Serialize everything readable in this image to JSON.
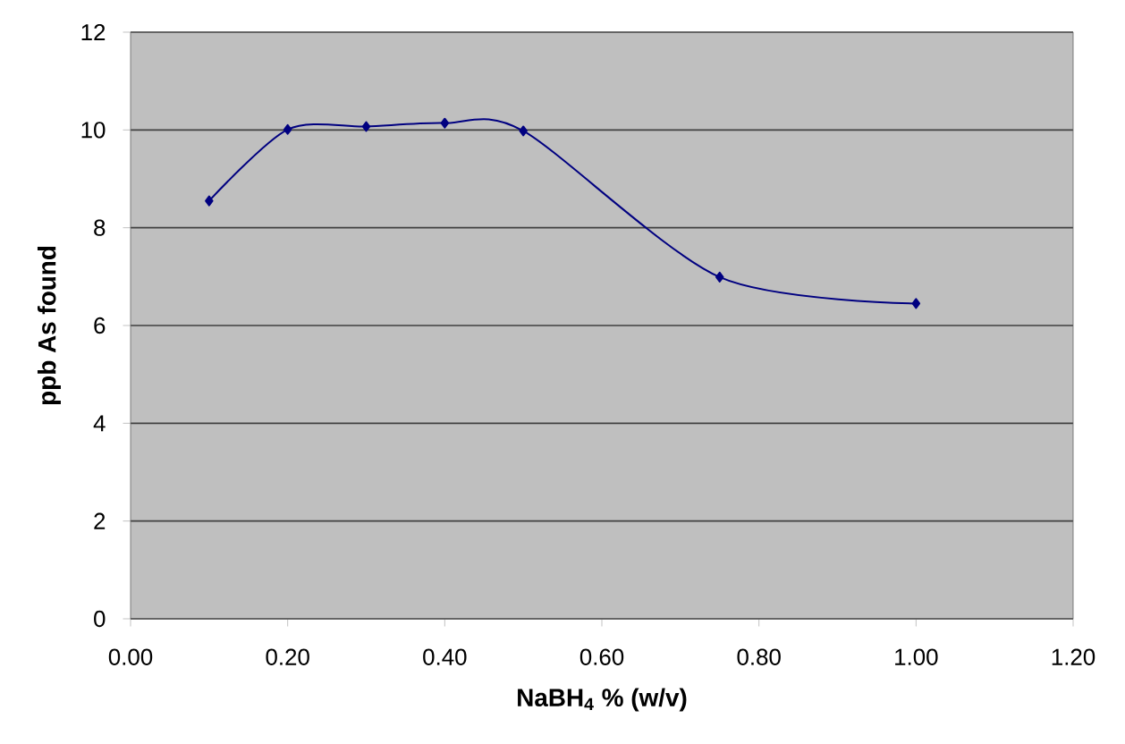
{
  "chart_data": {
    "type": "line",
    "xlabel": "NaBH$_{4}$ % (w/v)",
    "ylabel": "ppb  As found",
    "x": [
      0.1,
      0.2,
      0.3,
      0.4,
      0.5,
      0.75,
      1.0
    ],
    "series": [
      {
        "color": "#000080",
        "values": [
          8.55,
          10.01,
          10.07,
          10.14,
          9.98,
          6.99,
          6.45
        ]
      }
    ],
    "xlim": [
      0,
      1.2
    ],
    "ylim": [
      0,
      12
    ],
    "xticks": [
      {
        "value": 0,
        "label": "0.00"
      },
      {
        "value": 0.2,
        "label": "0.20"
      },
      {
        "value": 0.4,
        "label": "0.40"
      },
      {
        "value": 0.6,
        "label": "0.60"
      },
      {
        "value": 0.8,
        "label": "0.80"
      },
      {
        "value": 1.0,
        "label": "1.00"
      },
      {
        "value": 1.2,
        "label": "1.20"
      }
    ],
    "yticks": [
      0,
      2,
      4,
      6,
      8,
      10,
      12
    ],
    "grid": "y",
    "marker": "diamond",
    "line_style": "solid"
  }
}
